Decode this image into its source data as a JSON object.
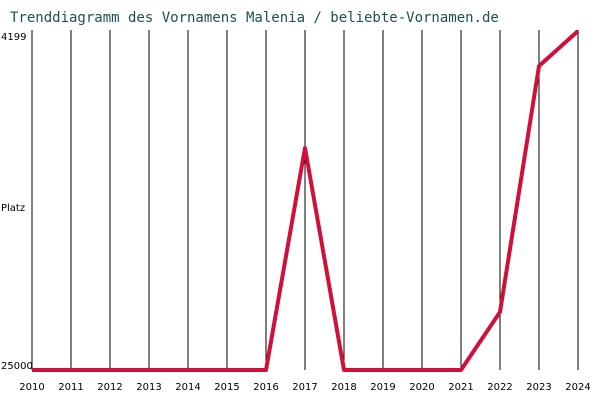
{
  "chart_data": {
    "type": "line",
    "title": "Trenddiagramm des Vornamens Malenia / beliebte-Vornamen.de",
    "y_label": "Platz",
    "x": [
      2010,
      2011,
      2012,
      2013,
      2014,
      2015,
      2016,
      2017,
      2018,
      2019,
      2020,
      2021,
      2022,
      2023,
      2024
    ],
    "xlim": [
      2010,
      2024
    ],
    "xticks": [
      2010,
      2011,
      2012,
      2013,
      2014,
      2015,
      2016,
      2017,
      2018,
      2019,
      2020,
      2021,
      2022,
      2023,
      2024
    ],
    "series": [
      {
        "name": "Malenia",
        "color": "#d0103a",
        "values": [
          25000,
          25000,
          25000,
          25000,
          25000,
          25000,
          25000,
          10960,
          25000,
          25000,
          25000,
          25000,
          21330,
          5780,
          3570
        ]
      }
    ],
    "ylim": [
      25000,
      4199
    ],
    "yticks": [
      4199,
      25000
    ],
    "grid": true
  }
}
